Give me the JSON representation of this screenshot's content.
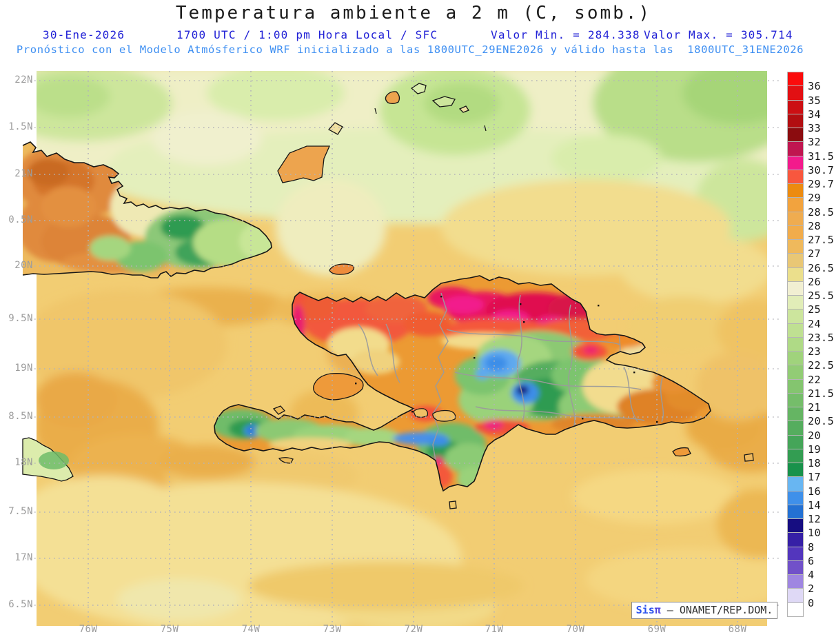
{
  "header": {
    "title": "Temperatura ambiente a 2 m (C, somb.)",
    "date": "30-Ene-2026",
    "time_line": "1700 UTC / 1:00 pm Hora Local / SFC",
    "valor_min": "Valor Min. = 284.338",
    "valor_max": "Valor Max. = 305.714",
    "forecast_line": "Pronóstico con el Modelo Atmósferico WRF inicializado a las 1800UTC_29ENE2026 y válido hasta las  1800UTC_31ENE2026"
  },
  "axes": {
    "lat": [
      "22N",
      "1.5N",
      "21N",
      "0.5N",
      "20N",
      "9.5N",
      "19N",
      "8.5N",
      "18N",
      "7.5N",
      "17N",
      "6.5N"
    ],
    "lon": [
      "76W",
      "75W",
      "74W",
      "73W",
      "72W",
      "71W",
      "70W",
      "69W",
      "68W"
    ]
  },
  "colorbar": {
    "labels": [
      "36",
      "35",
      "34",
      "33",
      "32",
      "31.5",
      "30.7",
      "29.7",
      "29",
      "28.5",
      "28",
      "27.5",
      "27",
      "26.5",
      "26",
      "25.5",
      "25",
      "24",
      "23.5",
      "23",
      "22.5",
      "22",
      "21.5",
      "21",
      "20.5",
      "20",
      "19",
      "18",
      "17",
      "16",
      "14",
      "12",
      "10",
      "8",
      "6",
      "4",
      "2",
      "0"
    ],
    "cell_colors": [
      "#FB0C0C",
      "#E21013",
      "#CC0F13",
      "#B20E11",
      "#8B0C0F",
      "#C01650",
      "#F31A8C",
      "#F8573E",
      "#EC8B10",
      "#F2A33E",
      "#EFAC50",
      "#F1AC4B",
      "#EFB95C",
      "#E9C775",
      "#EBDF8C",
      "#F1EFD2",
      "#E1EDB8",
      "#CCE59D",
      "#BFE092",
      "#AFDA86",
      "#A0D37C",
      "#92CC75",
      "#84C56F",
      "#75BD6A",
      "#65B563",
      "#55AD5E",
      "#45A559",
      "#339D52",
      "#18924B",
      "#68B6F2",
      "#3F90EA",
      "#2471D3",
      "#160D81",
      "#3620A6",
      "#5336BD",
      "#7151C9",
      "#9F86E1",
      "#DFD9F6",
      "#FFFFFF"
    ]
  },
  "branding": {
    "brand": "Sis",
    "pi": "π",
    "suffix": " — ONAMET/REP.DOM."
  },
  "map_meta": {
    "variable": "Temperatura ambiente a 2 m",
    "units": "C",
    "min_value": "284.338",
    "max_value": "305.714",
    "region": "Hispaniola / Caribbean"
  }
}
